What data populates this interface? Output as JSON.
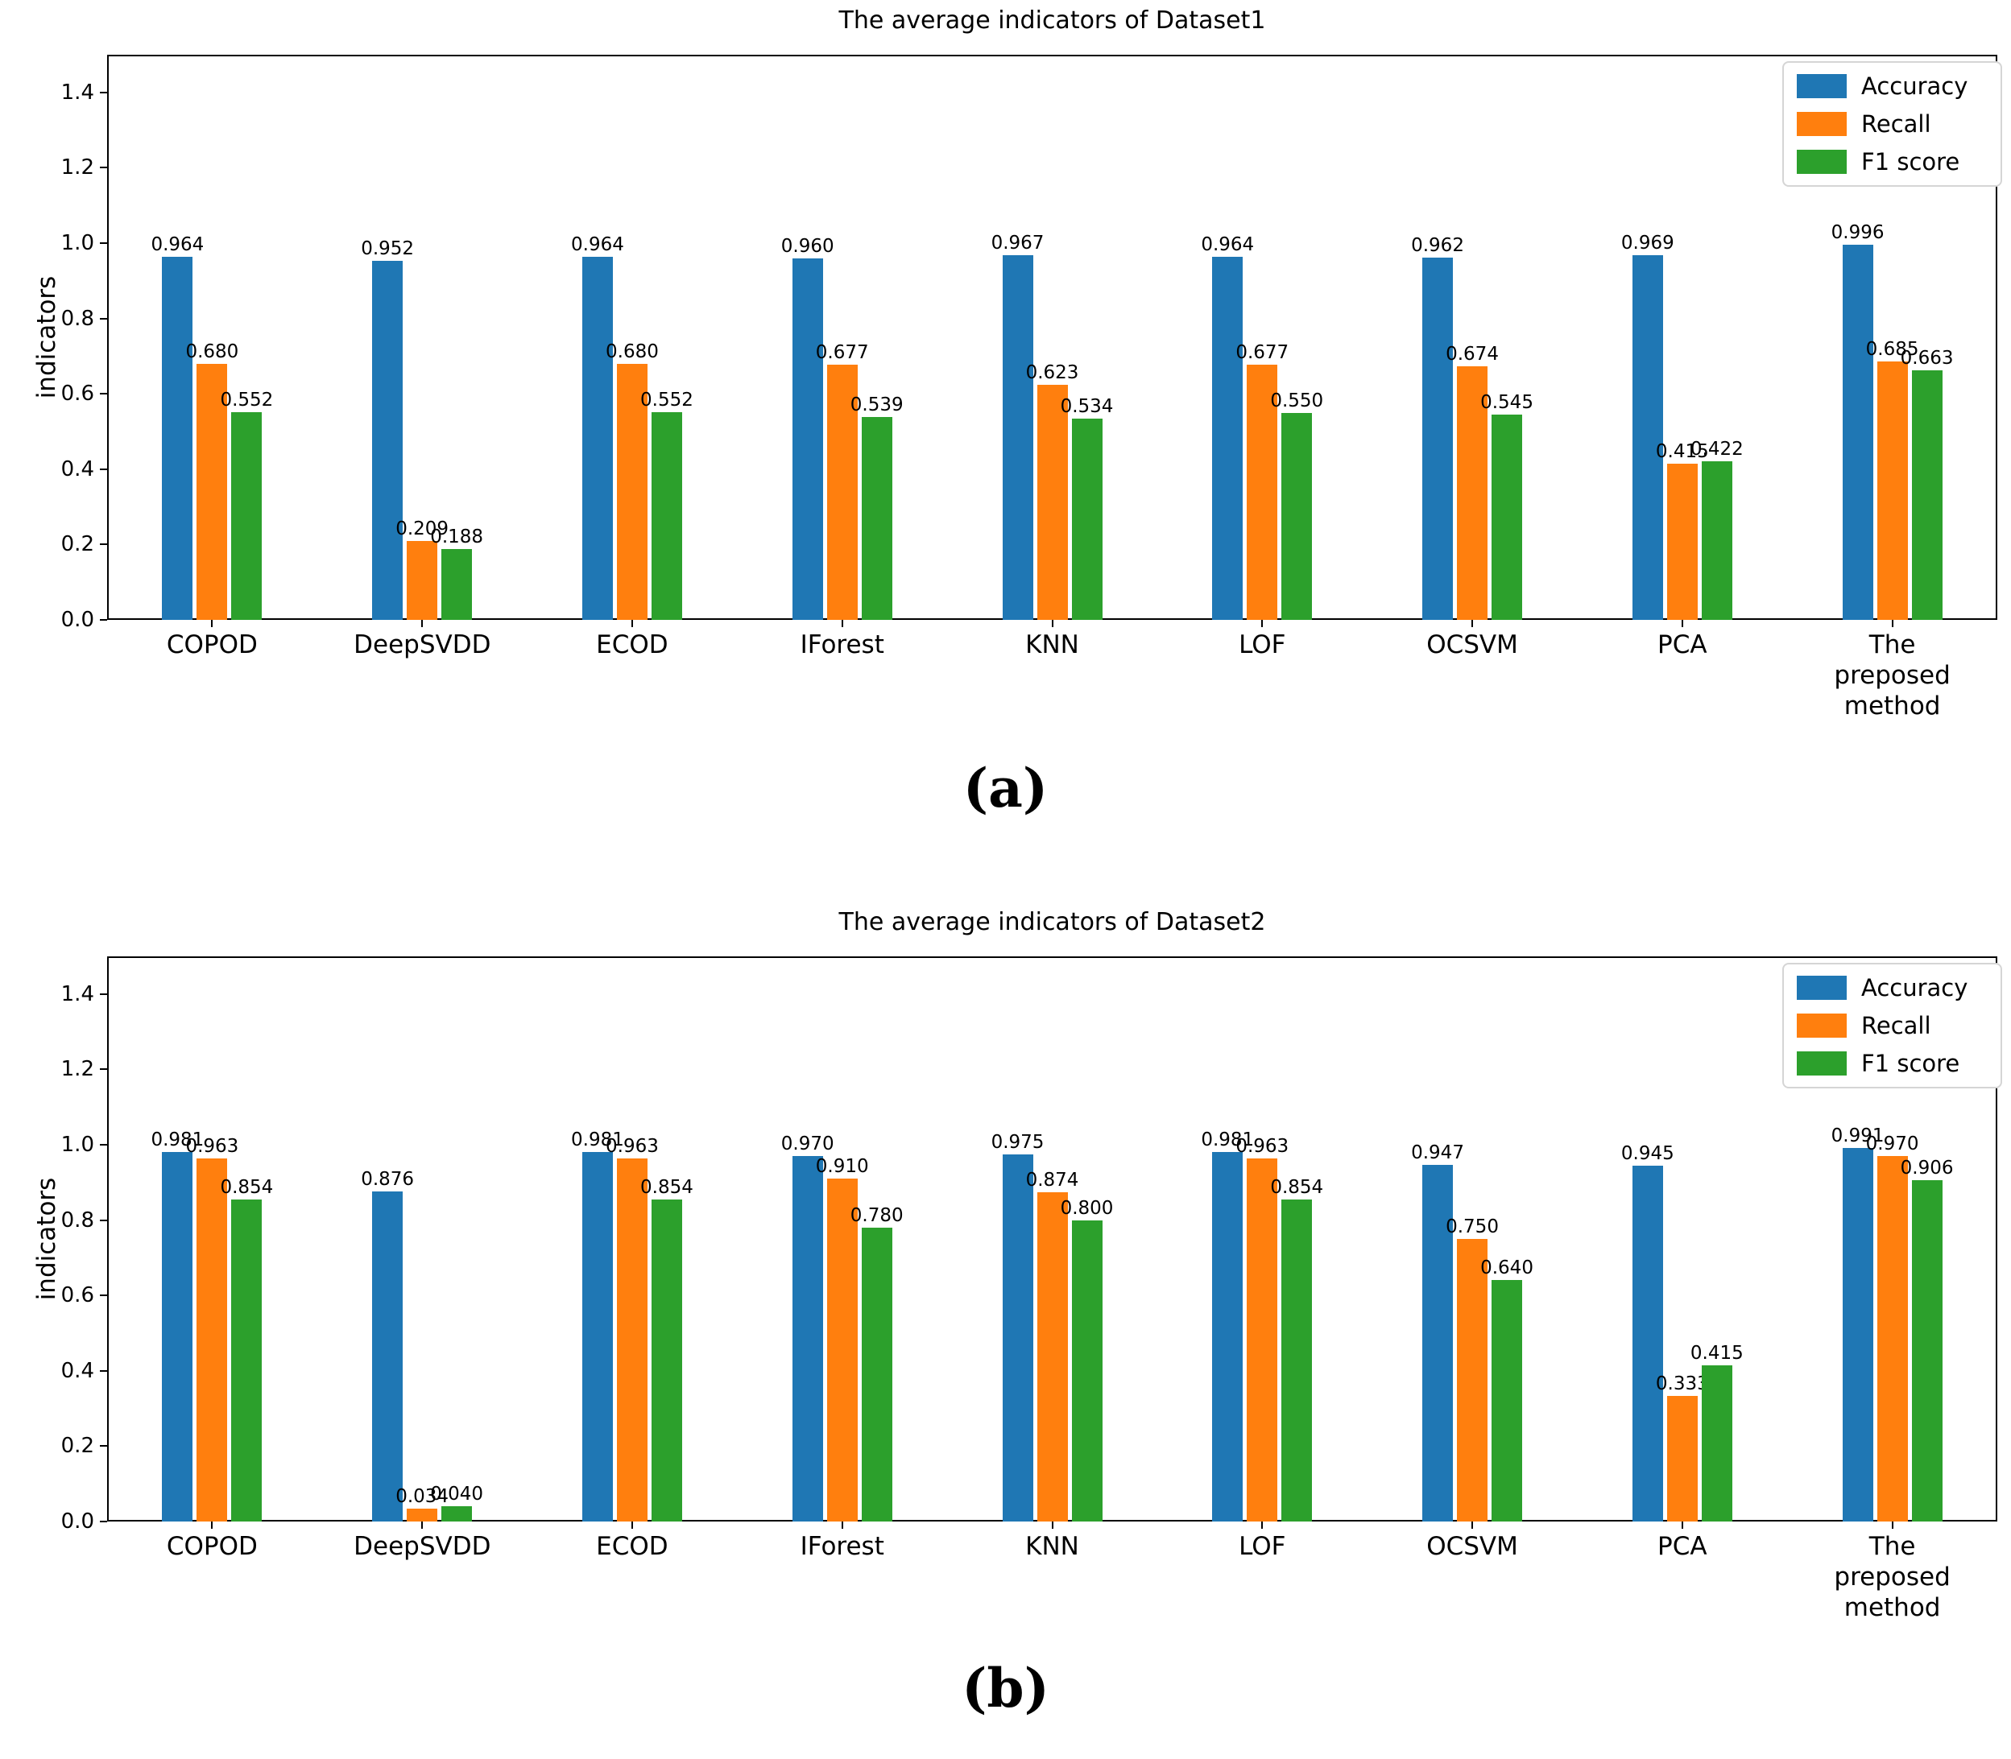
{
  "captions": {
    "a": "(a)",
    "b": "(b)"
  },
  "legend": {
    "labels": [
      "Accuracy",
      "Recall",
      "F1 score"
    ]
  },
  "colors": {
    "accuracy": "#1f77b4",
    "recall": "#ff7f0e",
    "f1_score": "#2ca02c"
  },
  "axis": {
    "ylabel": "indicators",
    "yticks": [
      "0.0",
      "0.2",
      "0.4",
      "0.6",
      "0.8",
      "1.0",
      "1.2",
      "1.4"
    ],
    "ymax": 1.5
  },
  "chart_data": [
    {
      "type": "bar",
      "title": "The average indicators of Dataset1",
      "ylabel": "indicators",
      "ylim": [
        0,
        1.5
      ],
      "grid": false,
      "legend_position": "upper right",
      "categories": [
        "COPOD",
        "DeepSVDD",
        "ECOD",
        "IForest",
        "KNN",
        "LOF",
        "OCSVM",
        "PCA",
        "The preposed method"
      ],
      "series": [
        {
          "name": "Accuracy",
          "color": "#1f77b4",
          "values": [
            0.964,
            0.952,
            0.964,
            0.96,
            0.967,
            0.964,
            0.962,
            0.969,
            0.996
          ]
        },
        {
          "name": "Recall",
          "color": "#ff7f0e",
          "values": [
            0.68,
            0.209,
            0.68,
            0.677,
            0.623,
            0.677,
            0.674,
            0.415,
            0.685
          ]
        },
        {
          "name": "F1 score",
          "color": "#2ca02c",
          "values": [
            0.552,
            0.188,
            0.552,
            0.539,
            0.534,
            0.55,
            0.545,
            0.422,
            0.663
          ]
        }
      ]
    },
    {
      "type": "bar",
      "title": "The average indicators of Dataset2",
      "ylabel": "indicators",
      "ylim": [
        0,
        1.5
      ],
      "grid": false,
      "legend_position": "upper right",
      "categories": [
        "COPOD",
        "DeepSVDD",
        "ECOD",
        "IForest",
        "KNN",
        "LOF",
        "OCSVM",
        "PCA",
        "The preposed method"
      ],
      "series": [
        {
          "name": "Accuracy",
          "color": "#1f77b4",
          "values": [
            0.981,
            0.876,
            0.981,
            0.97,
            0.975,
            0.981,
            0.947,
            0.945,
            0.991
          ]
        },
        {
          "name": "Recall",
          "color": "#ff7f0e",
          "values": [
            0.963,
            0.034,
            0.963,
            0.91,
            0.874,
            0.963,
            0.75,
            0.333,
            0.97
          ]
        },
        {
          "name": "F1 score",
          "color": "#2ca02c",
          "values": [
            0.854,
            0.04,
            0.854,
            0.78,
            0.8,
            0.854,
            0.64,
            0.415,
            0.906
          ]
        }
      ]
    }
  ]
}
